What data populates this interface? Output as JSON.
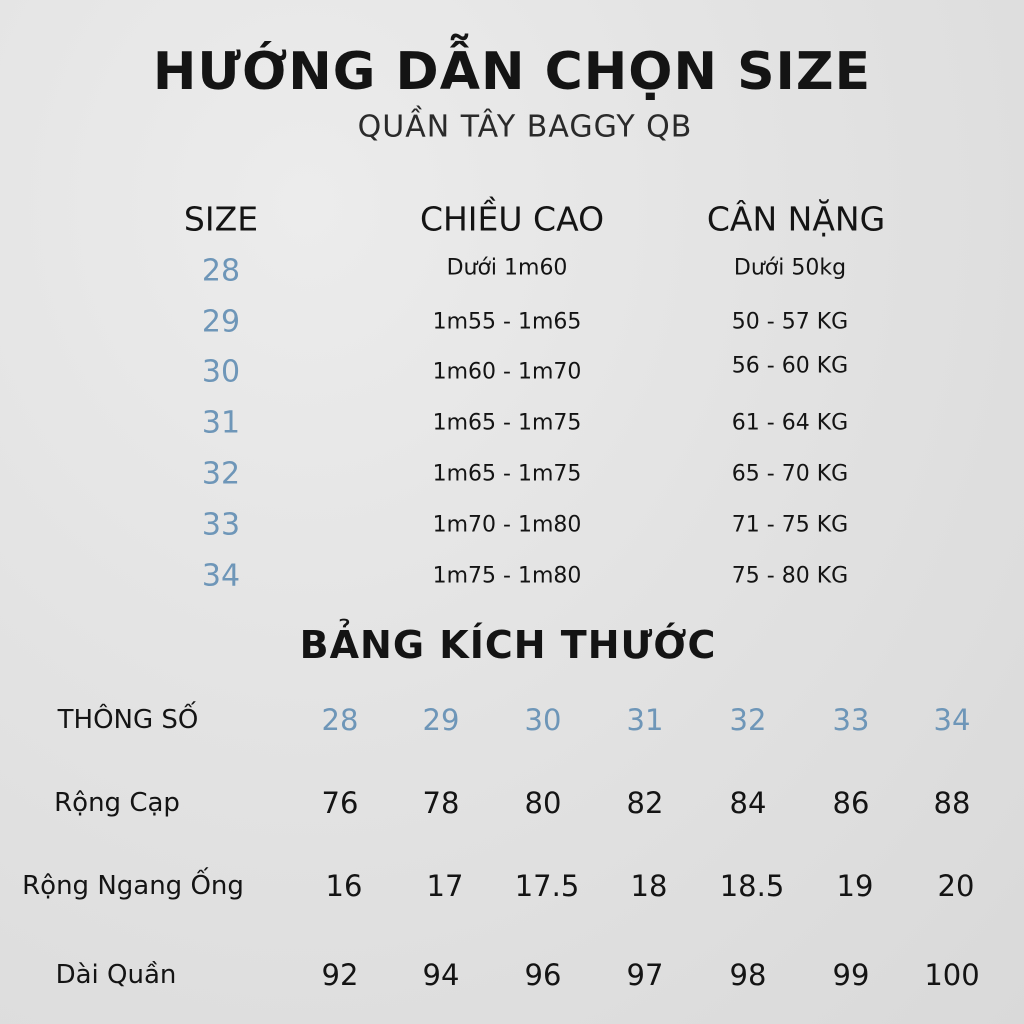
{
  "title": "HƯỚNG DẪN CHỌN SIZE",
  "subtitle": "QUẦN TÂY BAGGY QB",
  "colors": {
    "accent_blue": "#6e96b8",
    "text": "#141414",
    "background": "#e3e3e3"
  },
  "guide_table": {
    "headers": [
      "SIZE",
      "CHIỀU CAO",
      "CÂN NẶNG"
    ],
    "rows": [
      {
        "size": "28",
        "height": "Dưới 1m60",
        "weight": "Dưới 50kg"
      },
      {
        "size": "29",
        "height": "1m55 - 1m65",
        "weight": "50 - 57 KG"
      },
      {
        "size": "30",
        "height": "1m60 - 1m70",
        "weight": "56 - 60 KG"
      },
      {
        "size": "31",
        "height": "1m65 - 1m75",
        "weight": "61 - 64 KG"
      },
      {
        "size": "32",
        "height": "1m65 - 1m75",
        "weight": "65 - 70 KG"
      },
      {
        "size": "33",
        "height": "1m70 - 1m80",
        "weight": "71 - 75 KG"
      },
      {
        "size": "34",
        "height": "1m75 - 1m80",
        "weight": "75 - 80 KG"
      }
    ]
  },
  "measure_table": {
    "title": "BẢNG KÍCH THƯỚC",
    "header_label": "THÔNG SỐ",
    "sizes": [
      "28",
      "29",
      "30",
      "31",
      "32",
      "33",
      "34"
    ],
    "rows": [
      {
        "label": "Rộng Cạp",
        "values": [
          "76",
          "78",
          "80",
          "82",
          "84",
          "86",
          "88"
        ]
      },
      {
        "label": "Rộng Ngang Ống",
        "values": [
          "16",
          "17",
          "17.5",
          "18",
          "18.5",
          "19",
          "20"
        ]
      },
      {
        "label": "Dài Quần",
        "values": [
          "92",
          "94",
          "96",
          "97",
          "98",
          "99",
          "100"
        ]
      }
    ]
  }
}
